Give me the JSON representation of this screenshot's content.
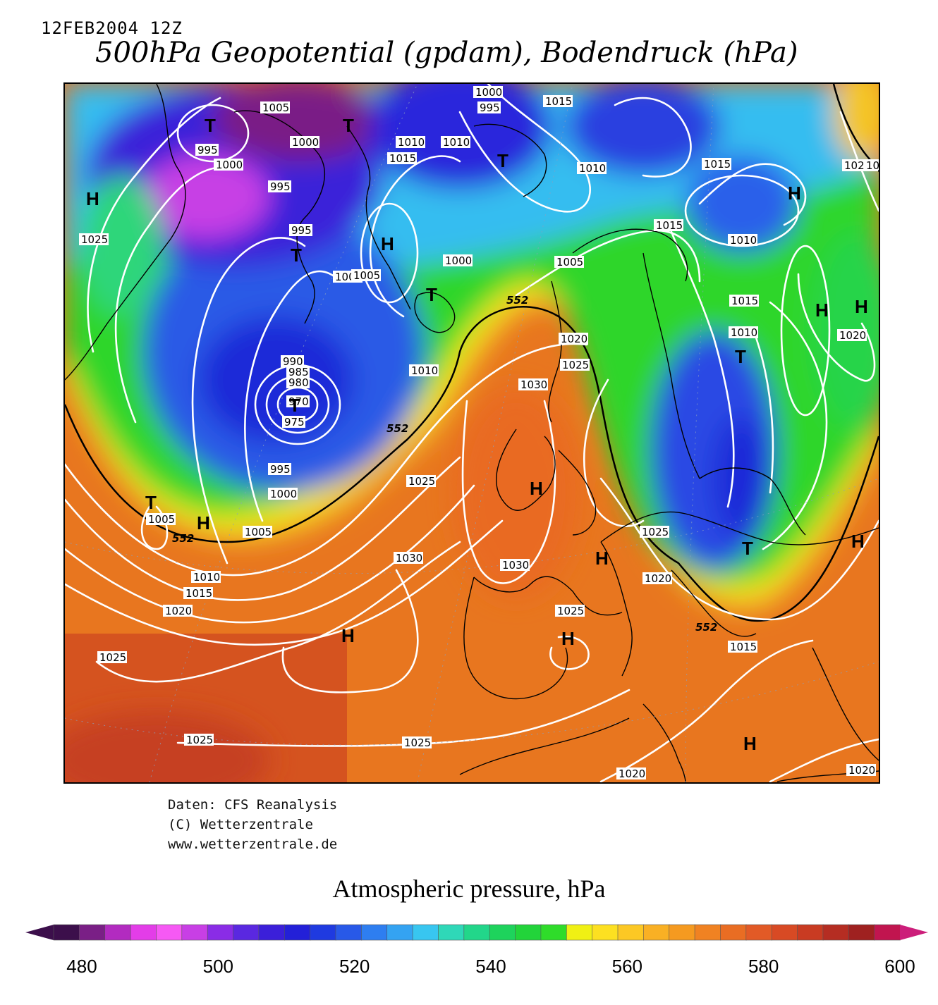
{
  "header": {
    "datetime": "12FEB2004 12Z",
    "title": "500hPa Geopotential (gpdam), Bodendruck (hPa)"
  },
  "map": {
    "isobar_labels": [
      "1005",
      "1000",
      "995",
      "1000",
      "995",
      "1010",
      "1010",
      "1015",
      "1000",
      "995",
      "1015",
      "1010",
      "1015",
      "1005",
      "1025",
      "995",
      "1000",
      "1005",
      "1000",
      "1005",
      "1015",
      "1010",
      "1010",
      "1015",
      "1020",
      "1025",
      "990",
      "985",
      "980",
      "970",
      "975",
      "1010",
      "1020",
      "1030",
      "995",
      "1025",
      "1000",
      "1005",
      "1005",
      "1010",
      "1015",
      "1020",
      "1030",
      "1030",
      "1025",
      "1025",
      "1020",
      "1025",
      "1025",
      "1025",
      "1020",
      "1015",
      "1020",
      "1020",
      "1015"
    ],
    "contour_552_label": "552",
    "pressure_centers": [
      "T",
      "T",
      "T",
      "H",
      "T",
      "H",
      "T",
      "H",
      "T",
      "H",
      "T",
      "H",
      "T",
      "H",
      "H",
      "H",
      "T",
      "H",
      "H",
      "H",
      "H",
      "T"
    ]
  },
  "credits": {
    "line1": "Daten: CFS Reanalysis",
    "line2": "(C) Wetterzentrale",
    "line3": "www.wetterzentrale.de"
  },
  "colorbar": {
    "title": "Atmospheric pressure, hPa",
    "min": 480,
    "max": 600,
    "step": 4,
    "ticks": [
      "480",
      "500",
      "520",
      "540",
      "560",
      "580",
      "600"
    ],
    "colors": [
      "#3c0f4b",
      "#7a1f86",
      "#b22bc0",
      "#e33de8",
      "#f659f4",
      "#c83fe5",
      "#8a2ce6",
      "#5a28e0",
      "#3b1fd9",
      "#2320d8",
      "#1f3ae0",
      "#2859e8",
      "#2e7ef0",
      "#34a3f2",
      "#38c6f0",
      "#2fd8b8",
      "#22d68a",
      "#1ed35c",
      "#22d43a",
      "#2fdc2a",
      "#f0f014",
      "#fde021",
      "#fcc824",
      "#f9b024",
      "#f59a20",
      "#f08222",
      "#e96d23",
      "#e25a26",
      "#d84a24",
      "#c93b22",
      "#b52d22",
      "#9f2120",
      "#c1154f"
    ],
    "arrow_left_color": "#3c0f4b",
    "arrow_right_color": "#cc1e7a"
  }
}
